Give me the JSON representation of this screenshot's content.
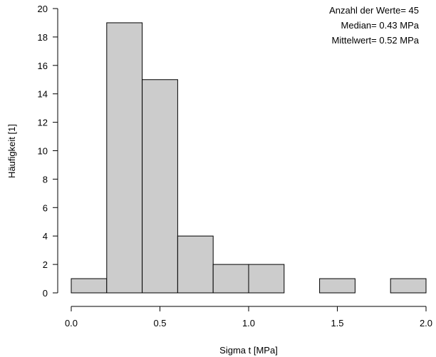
{
  "chart_data": {
    "type": "bar",
    "title": "",
    "xlabel": "Sigma t [MPa]",
    "ylabel": "Häufigkeit [1]",
    "bin_edges": [
      0.0,
      0.2,
      0.4,
      0.6,
      0.8,
      1.0,
      1.2,
      1.4,
      1.6,
      1.8,
      2.0
    ],
    "values": [
      1,
      19,
      15,
      4,
      2,
      2,
      0,
      1,
      0,
      1
    ],
    "xlim": [
      0.0,
      2.0
    ],
    "ylim": [
      0,
      20
    ],
    "x_ticks": [
      0.0,
      0.5,
      1.0,
      1.5,
      2.0
    ],
    "x_tick_labels": [
      "0.0",
      "0.5",
      "1.0",
      "1.5",
      "2.0"
    ],
    "y_ticks": [
      0,
      2,
      4,
      6,
      8,
      10,
      12,
      14,
      16,
      18,
      20
    ],
    "y_tick_labels": [
      "0",
      "2",
      "4",
      "6",
      "8",
      "10",
      "12",
      "14",
      "16",
      "18",
      "20"
    ],
    "grid": false,
    "bar_color": "#cccccc",
    "annotations": [
      "Anzahl der Werte= 45",
      "Median= 0.43 MPa",
      "Mittelwert= 0.52 MPa"
    ],
    "annotation_placement": "top-right"
  }
}
